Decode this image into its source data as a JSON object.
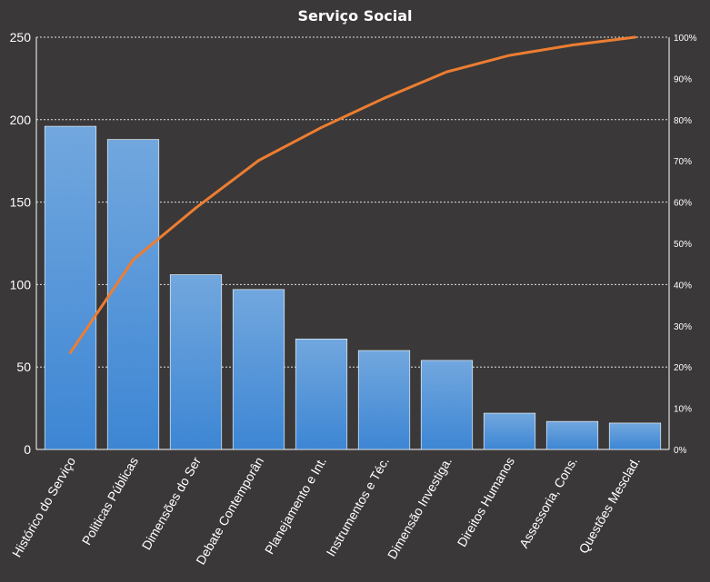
{
  "chart_data": {
    "type": "bar",
    "title": "Serviço Social",
    "categories": [
      "Histórico do Serviço",
      "Politicas Públicas",
      "Dimensões do Ser",
      "Debate Contemporân",
      "Planejamento e Int.",
      "Instrumentos  e Téc.",
      "Dimensão Investiga.",
      "Direitos Humanos",
      "Assessoria, Cons.",
      "Questões Mesclad."
    ],
    "series": [
      {
        "type": "bar",
        "values": [
          196,
          188,
          106,
          97,
          67,
          60,
          54,
          22,
          17,
          16
        ]
      },
      {
        "type": "line",
        "axis": "right",
        "values": [
          0.235,
          0.46,
          0.586,
          0.701,
          0.781,
          0.852,
          0.916,
          0.956,
          0.981,
          1.0
        ]
      }
    ],
    "ylim": [
      0,
      250
    ],
    "yticks": [
      "0",
      "50",
      "100",
      "150",
      "200",
      "250"
    ],
    "y2lim": [
      0,
      1
    ],
    "y2ticks": [
      "0%",
      "10%",
      "20%",
      "30%",
      "40%",
      "50%",
      "60%",
      "70%",
      "80%",
      "90%",
      "100%"
    ],
    "grid": true,
    "legend": "none",
    "colors": {
      "bar": "#5b9bd5",
      "bar_top": "#6fa8dc",
      "line": "#ed7d31",
      "background": "#3a3838",
      "grid": "#ffffff"
    }
  }
}
